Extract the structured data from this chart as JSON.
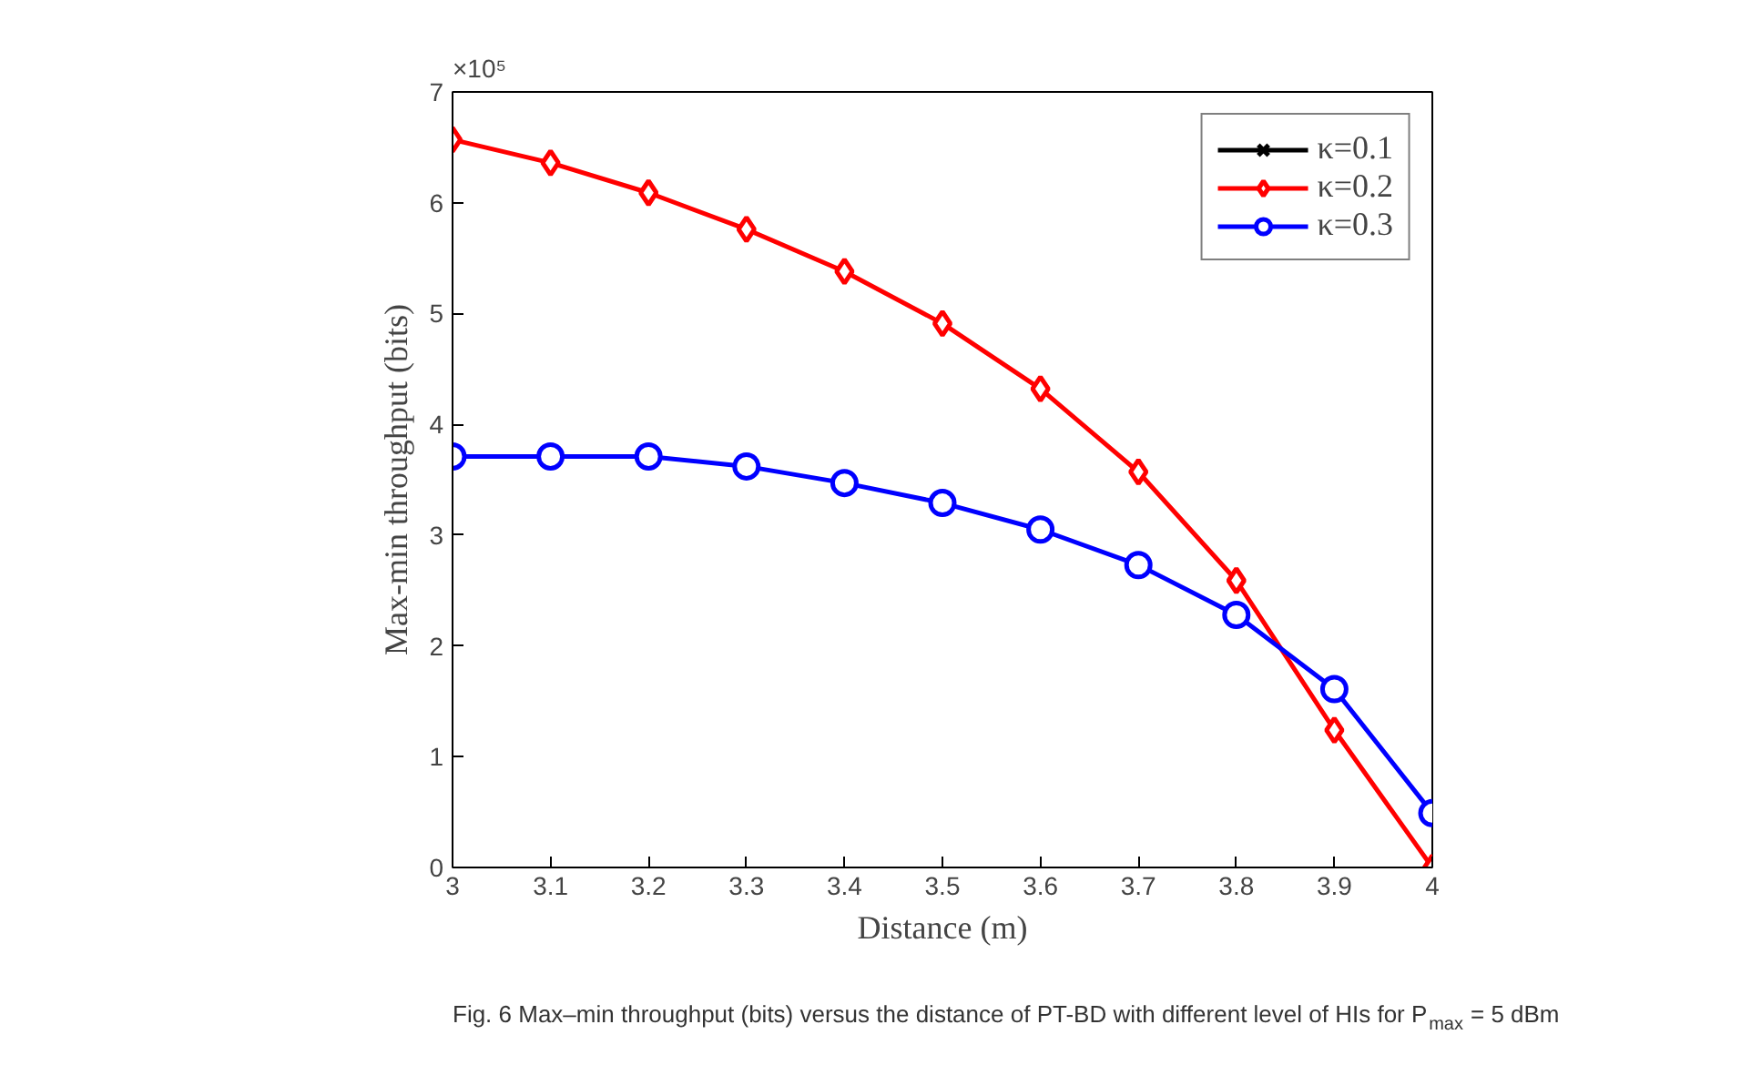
{
  "chart_data": {
    "type": "line",
    "xlabel": "Distance (m)",
    "ylabel": "Max-min throughput (bits)",
    "x": [
      3,
      3.1,
      3.2,
      3.3,
      3.4,
      3.5,
      3.6,
      3.7,
      3.8,
      3.9,
      4
    ],
    "series": [
      {
        "name": "κ=0.1",
        "color": "#000000",
        "marker": "cross",
        "values": [
          null,
          null,
          null,
          null,
          null,
          null,
          null,
          null,
          null,
          null,
          null
        ]
      },
      {
        "name": "κ=0.2",
        "color": "#ff0000",
        "marker": "diamond",
        "values": [
          6.57,
          6.36,
          6.09,
          5.76,
          5.38,
          4.91,
          4.32,
          3.57,
          2.59,
          1.24,
          0.0
        ]
      },
      {
        "name": "κ=0.3",
        "color": "#0000ff",
        "marker": "circle",
        "values": [
          3.71,
          3.71,
          3.71,
          3.62,
          3.47,
          3.29,
          3.05,
          2.73,
          2.28,
          1.61,
          0.49
        ]
      }
    ],
    "xlim": [
      3,
      4
    ],
    "ylim": [
      0,
      7
    ],
    "xticks": [
      3,
      3.1,
      3.2,
      3.3,
      3.4,
      3.5,
      3.6,
      3.7,
      3.8,
      3.9,
      4
    ],
    "yticks": [
      0,
      1,
      2,
      3,
      4,
      5,
      6,
      7
    ],
    "grid": false,
    "legend": "top right",
    "line_style": "solid",
    "annotations": [
      "×10⁵",
      "Fig. 6 Max–min throughput (bits) versus the distance of PT-BD with different level of HIs for P$_{max}$ = 5 dBm"
    ]
  }
}
